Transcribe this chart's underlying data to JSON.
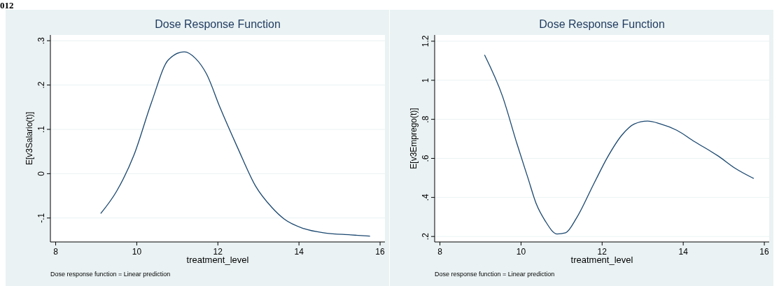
{
  "chart_data": [
    {
      "type": "line",
      "title": "Dose Response Function",
      "xlabel": "treatment_level",
      "ylabel": "E[v3Salario(t)]",
      "annotations": [
        "012",
        "Dose response function = Linear prediction"
      ],
      "xlim": [
        7.87,
        16.12
      ],
      "xticks": [
        8,
        10,
        12,
        14,
        16
      ],
      "ylim": [
        -0.154,
        0.313
      ],
      "yticks": [
        {
          "value": 0.3,
          "label": ".3"
        },
        {
          "value": 0.2,
          "label": ".2"
        },
        {
          "value": 0.1,
          "label": ".1"
        },
        0,
        {
          "value": -0.1,
          "label": "-.1"
        }
      ],
      "grid": "y",
      "series": [
        {
          "color": "#1a476f",
          "x": [
            9.11,
            9.5,
            9.93,
            10.36,
            10.78,
            11.17,
            11.45,
            11.72,
            12.05,
            12.48,
            12.93,
            13.33,
            13.63,
            14.12,
            14.66,
            15.27,
            15.75
          ],
          "values": [
            -0.09,
            -0.04,
            0.042,
            0.16,
            0.257,
            0.275,
            0.26,
            0.225,
            0.15,
            0.06,
            -0.028,
            -0.076,
            -0.102,
            -0.124,
            -0.134,
            -0.138,
            -0.141
          ]
        }
      ]
    },
    {
      "type": "line",
      "title": "Dose Response Function",
      "xlabel": "treatment_level",
      "ylabel": "E[v3Emprego(t)]",
      "annotations": [
        "Dose response function = Linear prediction"
      ],
      "xlim": [
        7.87,
        16.12
      ],
      "xticks": [
        8,
        10,
        12,
        14,
        16
      ],
      "ylim": [
        0.172,
        1.232
      ],
      "yticks": [
        1.2,
        1,
        {
          "value": 0.8,
          "label": ".8"
        },
        {
          "value": 0.6,
          "label": ".6"
        },
        {
          "value": 0.4,
          "label": ".4"
        },
        {
          "value": 0.2,
          "label": ".2"
        }
      ],
      "grid": "y",
      "series": [
        {
          "color": "#1a476f",
          "x": [
            9.1,
            9.54,
            9.9,
            10.17,
            10.38,
            10.59,
            10.89,
            11.1,
            11.37,
            11.8,
            12.13,
            12.49,
            12.79,
            13.12,
            13.42,
            13.84,
            14.27,
            14.87,
            15.29,
            15.74
          ],
          "values": [
            1.13,
            0.92,
            0.675,
            0.5,
            0.365,
            0.282,
            0.213,
            0.219,
            0.295,
            0.472,
            0.605,
            0.72,
            0.776,
            0.791,
            0.778,
            0.744,
            0.687,
            0.611,
            0.548,
            0.497
          ]
        }
      ]
    }
  ]
}
